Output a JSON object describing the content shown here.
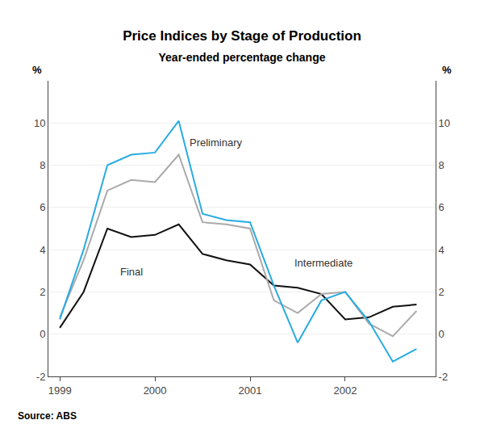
{
  "chart_data": {
    "type": "line",
    "title": "Price Indices by Stage of Production",
    "subtitle": "Year-ended percentage change",
    "source": "Source: ABS",
    "ylabel": "%",
    "y2label": "%",
    "x": [
      1999.0,
      1999.25,
      1999.5,
      1999.75,
      2000.0,
      2000.25,
      2000.5,
      2000.75,
      2001.0,
      2001.25,
      2001.5,
      2001.75,
      2002.0,
      2002.25,
      2002.5,
      2002.75
    ],
    "series": [
      {
        "name": "Final",
        "color": "#111111",
        "values": [
          0.3,
          2.0,
          5.0,
          4.6,
          4.7,
          5.2,
          3.8,
          3.5,
          3.3,
          2.3,
          2.2,
          1.9,
          0.7,
          0.8,
          1.3,
          1.4
        ]
      },
      {
        "name": "Intermediate",
        "color": "#aaaaaa",
        "values": [
          0.8,
          3.5,
          6.8,
          7.3,
          7.2,
          8.5,
          5.3,
          5.2,
          5.0,
          1.6,
          1.0,
          1.9,
          2.0,
          0.5,
          -0.1,
          1.1
        ]
      },
      {
        "name": "Preliminary",
        "color": "#29abe2",
        "values": [
          0.7,
          4.0,
          8.0,
          8.5,
          8.6,
          10.1,
          5.7,
          5.4,
          5.3,
          2.3,
          -0.4,
          1.6,
          2.0,
          0.6,
          -1.3,
          -0.7
        ]
      }
    ],
    "annotations": [
      {
        "text": "Preliminary",
        "x": 2000.35,
        "y": 8.7
      },
      {
        "text": "Intermediate",
        "x": 2001.45,
        "y": 3.0
      },
      {
        "text": "Final",
        "x": 1999.62,
        "y": 2.6
      }
    ],
    "xlim": [
      1998.88,
      2002.95
    ],
    "xticks": [
      1999,
      2000,
      2001,
      2002
    ],
    "ylim": [
      -2,
      12
    ],
    "yticks": [
      -2,
      0,
      2,
      4,
      6,
      8,
      10
    ],
    "y2lim": [
      -2,
      12
    ],
    "y2ticks": [
      -2,
      0,
      2,
      4,
      6,
      8,
      10
    ],
    "grid": "y"
  }
}
